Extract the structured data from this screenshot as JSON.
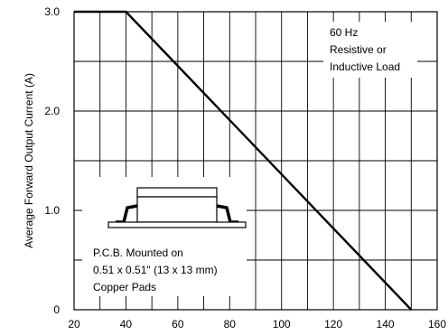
{
  "chart_data": {
    "type": "line",
    "title": "",
    "xlabel": "",
    "ylabel": "Average Forward Output Current (A)",
    "xlim": [
      20,
      160
    ],
    "ylim": [
      0,
      3.0
    ],
    "x_ticks": [
      20,
      40,
      60,
      80,
      100,
      120,
      140,
      160
    ],
    "x_tick_labels": [
      "20",
      "40",
      "60",
      "80",
      "100",
      "120",
      "140",
      "160"
    ],
    "y_ticks": [
      0,
      1.0,
      2.0,
      3.0
    ],
    "y_tick_labels": [
      "0",
      "1.0",
      "2.0",
      "3.0"
    ],
    "x_minor_step": 10,
    "y_minor_step": 0.5,
    "grid": true,
    "series": [
      {
        "x": [
          20,
          40,
          150
        ],
        "y": [
          3.0,
          3.0,
          0
        ]
      }
    ],
    "annotations": [
      {
        "id": "load",
        "lines": [
          "60 Hz",
          "Resistive or",
          "Inductive Load"
        ]
      },
      {
        "id": "mount",
        "lines": [
          "P.C.B. Mounted on",
          "0.51 x 0.51\" (13 x 13 mm)",
          "Copper Pads"
        ]
      }
    ]
  }
}
